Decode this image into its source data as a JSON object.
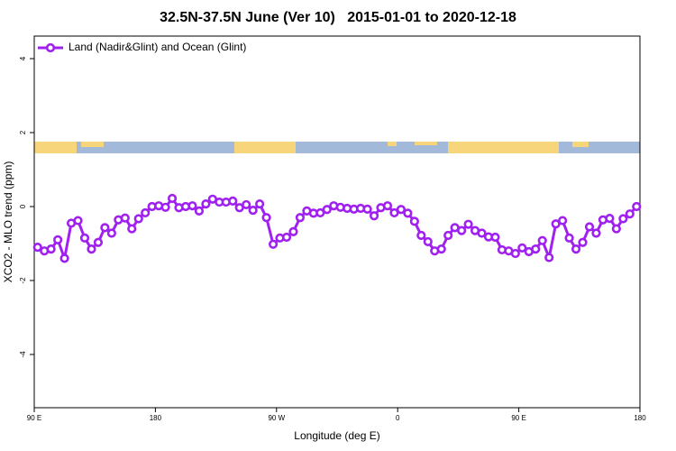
{
  "chart_data": {
    "type": "line",
    "title": "32.5N-37.5N June (Ver 10)   2015-01-01 to 2020-12-18",
    "x_label": "Longitude (deg E)",
    "y_label": "XCO2 - MLO trend (ppm)",
    "xlim": [
      90,
      540
    ],
    "ylim": [
      -5.44,
      4.61
    ],
    "xticks": [
      {
        "value": 90,
        "label": "90 E"
      },
      180,
      {
        "value": 270,
        "label": "90 W"
      },
      {
        "value": 360,
        "label": "0"
      },
      {
        "value": 450,
        "label": "90 E"
      },
      {
        "value": 540,
        "label": "180"
      }
    ],
    "yticks": [
      -4,
      -2,
      0,
      2,
      4
    ],
    "legend": "top-left",
    "x": [
      92.5,
      97.5,
      102.5,
      107.5,
      112.5,
      117.5,
      122.5,
      127.5,
      132.5,
      137.5,
      142.5,
      147.5,
      152.5,
      157.5,
      162.5,
      167.5,
      172.5,
      177.5,
      182.5,
      187.5,
      192.5,
      197.5,
      202.5,
      207.5,
      212.5,
      217.5,
      222.5,
      227.5,
      232.5,
      237.5,
      242.5,
      247.5,
      252.5,
      257.5,
      262.5,
      267.5,
      272.5,
      277.5,
      282.5,
      287.5,
      292.5,
      297.5,
      302.5,
      307.5,
      312.5,
      317.5,
      322.5,
      327.5,
      332.5,
      337.5,
      342.5,
      347.5,
      352.5,
      357.5,
      362.5,
      367.5,
      372.5,
      377.5,
      382.5,
      387.5,
      392.5,
      397.5,
      402.5,
      407.5,
      412.5,
      417.5,
      422.5,
      427.5,
      432.5,
      437.5,
      442.5,
      447.5,
      452.5,
      457.5,
      462.5,
      467.5,
      472.5,
      477.5,
      482.5,
      487.5,
      492.5,
      497.5,
      502.5,
      507.5,
      512.5,
      517.5,
      522.5,
      527.5,
      532.5,
      537.5
    ],
    "series": [
      {
        "name": "Land (Nadir&Glint) and Ocean (Glint)",
        "color": "#a020f0",
        "values": [
          -1.1,
          -1.2,
          -1.15,
          -0.9,
          -1.4,
          -0.45,
          -0.38,
          -0.85,
          -1.15,
          -0.97,
          -0.57,
          -0.72,
          -0.36,
          -0.31,
          -0.6,
          -0.33,
          -0.17,
          0,
          0.02,
          -0.02,
          0.22,
          -0.03,
          0,
          0.02,
          -0.12,
          0.07,
          0.2,
          0.12,
          0.12,
          0.15,
          -0.03,
          0.05,
          -0.1,
          0.07,
          -0.3,
          -1.02,
          -0.85,
          -0.83,
          -0.68,
          -0.3,
          -0.12,
          -0.18,
          -0.17,
          -0.08,
          0.02,
          -0.02,
          -0.05,
          -0.07,
          -0.05,
          -0.07,
          -0.25,
          -0.03,
          0.02,
          -0.17,
          -0.08,
          -0.18,
          -0.4,
          -0.78,
          -0.95,
          -1.2,
          -1.15,
          -0.78,
          -0.57,
          -0.65,
          -0.48,
          -0.65,
          -0.72,
          -0.82,
          -0.83,
          -1.17,
          -1.2,
          -1.27,
          -1.12,
          -1.22,
          -1.15,
          -0.92,
          -1.38,
          -0.47,
          -0.38,
          -0.85,
          -1.15,
          -0.97,
          -0.55,
          -0.72,
          -0.36,
          -0.32,
          -0.6,
          -0.33,
          -0.2,
          0
        ]
      }
    ]
  }
}
